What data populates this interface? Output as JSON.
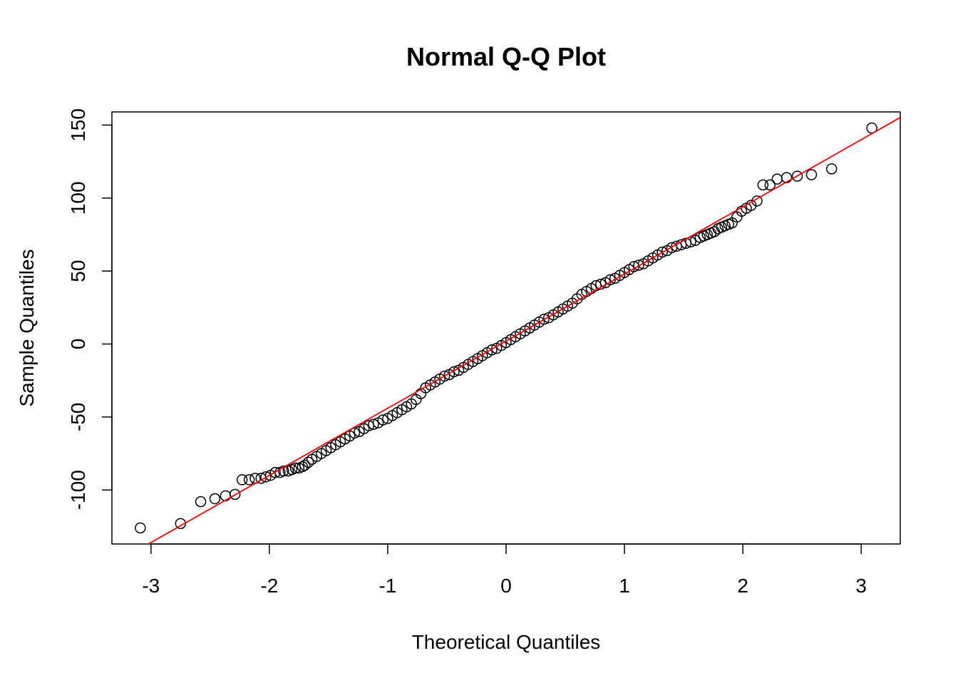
{
  "chart_data": {
    "type": "scatter",
    "title": "Normal Q-Q Plot",
    "xlabel": "Theoretical Quantiles",
    "ylabel": "Sample Quantiles",
    "xlim": [
      -3.33,
      3.33
    ],
    "ylim": [
      -137,
      159
    ],
    "xticks": [
      -3,
      -2,
      -1,
      0,
      1,
      2,
      3
    ],
    "xtick_labels": [
      "-3",
      "-2",
      "-1",
      "0",
      "1",
      "2",
      "3"
    ],
    "yticks": [
      -100,
      -50,
      0,
      50,
      100,
      150
    ],
    "ytick_labels": [
      "-100",
      "-50",
      "0",
      "50",
      "100",
      "150"
    ],
    "grid": false,
    "legend": "none",
    "point_style": "open circle",
    "point_color": "#000000",
    "reference_line": {
      "intercept": 2,
      "slope": 46,
      "color": "#FF0000"
    },
    "series": [
      {
        "points": [
          {
            "x": -3.09,
            "y": -126
          },
          {
            "x": -2.75,
            "y": -123
          },
          {
            "x": -2.58,
            "y": -108
          },
          {
            "x": -2.46,
            "y": -106
          },
          {
            "x": -2.37,
            "y": -104
          },
          {
            "x": -2.29,
            "y": -103
          },
          {
            "x": -2.23,
            "y": -93
          },
          {
            "x": -2.17,
            "y": -93
          },
          {
            "x": -2.12,
            "y": -92
          },
          {
            "x": -2.07,
            "y": -92
          },
          {
            "x": -2.03,
            "y": -91
          },
          {
            "x": -1.99,
            "y": -90
          },
          {
            "x": -1.95,
            "y": -88
          },
          {
            "x": -1.91,
            "y": -88
          },
          {
            "x": -1.88,
            "y": -87
          },
          {
            "x": -1.84,
            "y": -87
          },
          {
            "x": -1.81,
            "y": -86
          },
          {
            "x": -1.78,
            "y": -85
          },
          {
            "x": -1.75,
            "y": -85
          },
          {
            "x": -1.72,
            "y": -84
          },
          {
            "x": -1.7,
            "y": -83
          },
          {
            "x": -1.67,
            "y": -81
          },
          {
            "x": -1.64,
            "y": -79
          },
          {
            "x": -1.6,
            "y": -77
          },
          {
            "x": -1.56,
            "y": -75
          },
          {
            "x": -1.52,
            "y": -73
          },
          {
            "x": -1.48,
            "y": -71
          },
          {
            "x": -1.44,
            "y": -69
          },
          {
            "x": -1.4,
            "y": -67
          },
          {
            "x": -1.36,
            "y": -65
          },
          {
            "x": -1.32,
            "y": -63
          },
          {
            "x": -1.28,
            "y": -61
          },
          {
            "x": -1.24,
            "y": -60
          },
          {
            "x": -1.2,
            "y": -58
          },
          {
            "x": -1.16,
            "y": -56
          },
          {
            "x": -1.12,
            "y": -55
          },
          {
            "x": -1.08,
            "y": -54
          },
          {
            "x": -1.04,
            "y": -52
          },
          {
            "x": -1.0,
            "y": -51
          },
          {
            "x": -0.96,
            "y": -49
          },
          {
            "x": -0.92,
            "y": -47
          },
          {
            "x": -0.88,
            "y": -45
          },
          {
            "x": -0.84,
            "y": -43
          },
          {
            "x": -0.8,
            "y": -41
          },
          {
            "x": -0.76,
            "y": -38
          },
          {
            "x": -0.72,
            "y": -34
          },
          {
            "x": -0.68,
            "y": -30
          },
          {
            "x": -0.64,
            "y": -28
          },
          {
            "x": -0.6,
            "y": -26
          },
          {
            "x": -0.56,
            "y": -24
          },
          {
            "x": -0.52,
            "y": -22
          },
          {
            "x": -0.48,
            "y": -21
          },
          {
            "x": -0.44,
            "y": -19
          },
          {
            "x": -0.4,
            "y": -18
          },
          {
            "x": -0.36,
            "y": -16
          },
          {
            "x": -0.32,
            "y": -14
          },
          {
            "x": -0.28,
            "y": -12
          },
          {
            "x": -0.24,
            "y": -10
          },
          {
            "x": -0.2,
            "y": -8
          },
          {
            "x": -0.16,
            "y": -6
          },
          {
            "x": -0.12,
            "y": -4
          },
          {
            "x": -0.08,
            "y": -3
          },
          {
            "x": -0.04,
            "y": -1
          },
          {
            "x": 0.0,
            "y": 1
          },
          {
            "x": 0.04,
            "y": 3
          },
          {
            "x": 0.08,
            "y": 5
          },
          {
            "x": 0.12,
            "y": 7
          },
          {
            "x": 0.16,
            "y": 9
          },
          {
            "x": 0.2,
            "y": 11
          },
          {
            "x": 0.24,
            "y": 13
          },
          {
            "x": 0.28,
            "y": 15
          },
          {
            "x": 0.32,
            "y": 17
          },
          {
            "x": 0.36,
            "y": 18
          },
          {
            "x": 0.4,
            "y": 20
          },
          {
            "x": 0.44,
            "y": 22
          },
          {
            "x": 0.48,
            "y": 24
          },
          {
            "x": 0.52,
            "y": 26
          },
          {
            "x": 0.56,
            "y": 28
          },
          {
            "x": 0.6,
            "y": 31
          },
          {
            "x": 0.64,
            "y": 34
          },
          {
            "x": 0.68,
            "y": 36
          },
          {
            "x": 0.72,
            "y": 38
          },
          {
            "x": 0.76,
            "y": 40
          },
          {
            "x": 0.8,
            "y": 41
          },
          {
            "x": 0.84,
            "y": 42
          },
          {
            "x": 0.88,
            "y": 44
          },
          {
            "x": 0.92,
            "y": 45
          },
          {
            "x": 0.96,
            "y": 47
          },
          {
            "x": 1.0,
            "y": 49
          },
          {
            "x": 1.04,
            "y": 51
          },
          {
            "x": 1.08,
            "y": 53
          },
          {
            "x": 1.12,
            "y": 54
          },
          {
            "x": 1.16,
            "y": 55
          },
          {
            "x": 1.2,
            "y": 57
          },
          {
            "x": 1.24,
            "y": 59
          },
          {
            "x": 1.28,
            "y": 61
          },
          {
            "x": 1.32,
            "y": 63
          },
          {
            "x": 1.36,
            "y": 64
          },
          {
            "x": 1.4,
            "y": 66
          },
          {
            "x": 1.44,
            "y": 67
          },
          {
            "x": 1.48,
            "y": 68
          },
          {
            "x": 1.52,
            "y": 69
          },
          {
            "x": 1.56,
            "y": 70
          },
          {
            "x": 1.6,
            "y": 71
          },
          {
            "x": 1.64,
            "y": 73
          },
          {
            "x": 1.67,
            "y": 74
          },
          {
            "x": 1.7,
            "y": 75
          },
          {
            "x": 1.73,
            "y": 76
          },
          {
            "x": 1.76,
            "y": 77
          },
          {
            "x": 1.79,
            "y": 79
          },
          {
            "x": 1.82,
            "y": 80
          },
          {
            "x": 1.85,
            "y": 81
          },
          {
            "x": 1.88,
            "y": 82
          },
          {
            "x": 1.91,
            "y": 83
          },
          {
            "x": 1.95,
            "y": 87
          },
          {
            "x": 1.99,
            "y": 91
          },
          {
            "x": 2.03,
            "y": 93
          },
          {
            "x": 2.07,
            "y": 95
          },
          {
            "x": 2.12,
            "y": 98
          },
          {
            "x": 2.17,
            "y": 109
          },
          {
            "x": 2.23,
            "y": 109
          },
          {
            "x": 2.29,
            "y": 113
          },
          {
            "x": 2.37,
            "y": 114
          },
          {
            "x": 2.46,
            "y": 115
          },
          {
            "x": 2.58,
            "y": 116
          },
          {
            "x": 2.75,
            "y": 120
          },
          {
            "x": 3.09,
            "y": 148
          }
        ]
      }
    ]
  }
}
